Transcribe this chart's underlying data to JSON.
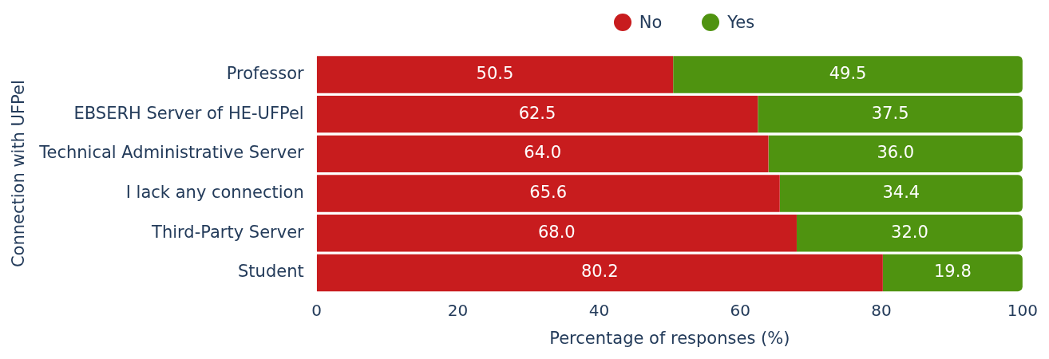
{
  "chart_data": {
    "type": "bar",
    "orientation": "horizontal",
    "stacked": true,
    "xlabel": "Percentage of responses (%)",
    "ylabel": "Connection with UFPel",
    "categories": [
      "Professor",
      "EBSERH Server of HE-UFPel",
      "Technical Administrative Server",
      "I lack any connection",
      "Third-Party Server",
      "Student"
    ],
    "series": [
      {
        "name": "No",
        "color": "#c81c1e",
        "values": [
          50.5,
          62.5,
          64.0,
          65.6,
          68.0,
          80.2
        ]
      },
      {
        "name": "Yes",
        "color": "#4f9310",
        "values": [
          49.5,
          37.5,
          36.0,
          34.4,
          32.0,
          19.8
        ]
      }
    ],
    "xlim": [
      0,
      100
    ],
    "xticks": [
      0,
      20,
      40,
      60,
      80,
      100
    ],
    "value_labels": [
      [
        "50.5",
        "62.5",
        "64.0",
        "65.6",
        "68.0",
        "80.2"
      ],
      [
        "49.5",
        "37.5",
        "36.0",
        "34.4",
        "32.0",
        "19.8"
      ]
    ],
    "legend": "top",
    "grid": false
  }
}
